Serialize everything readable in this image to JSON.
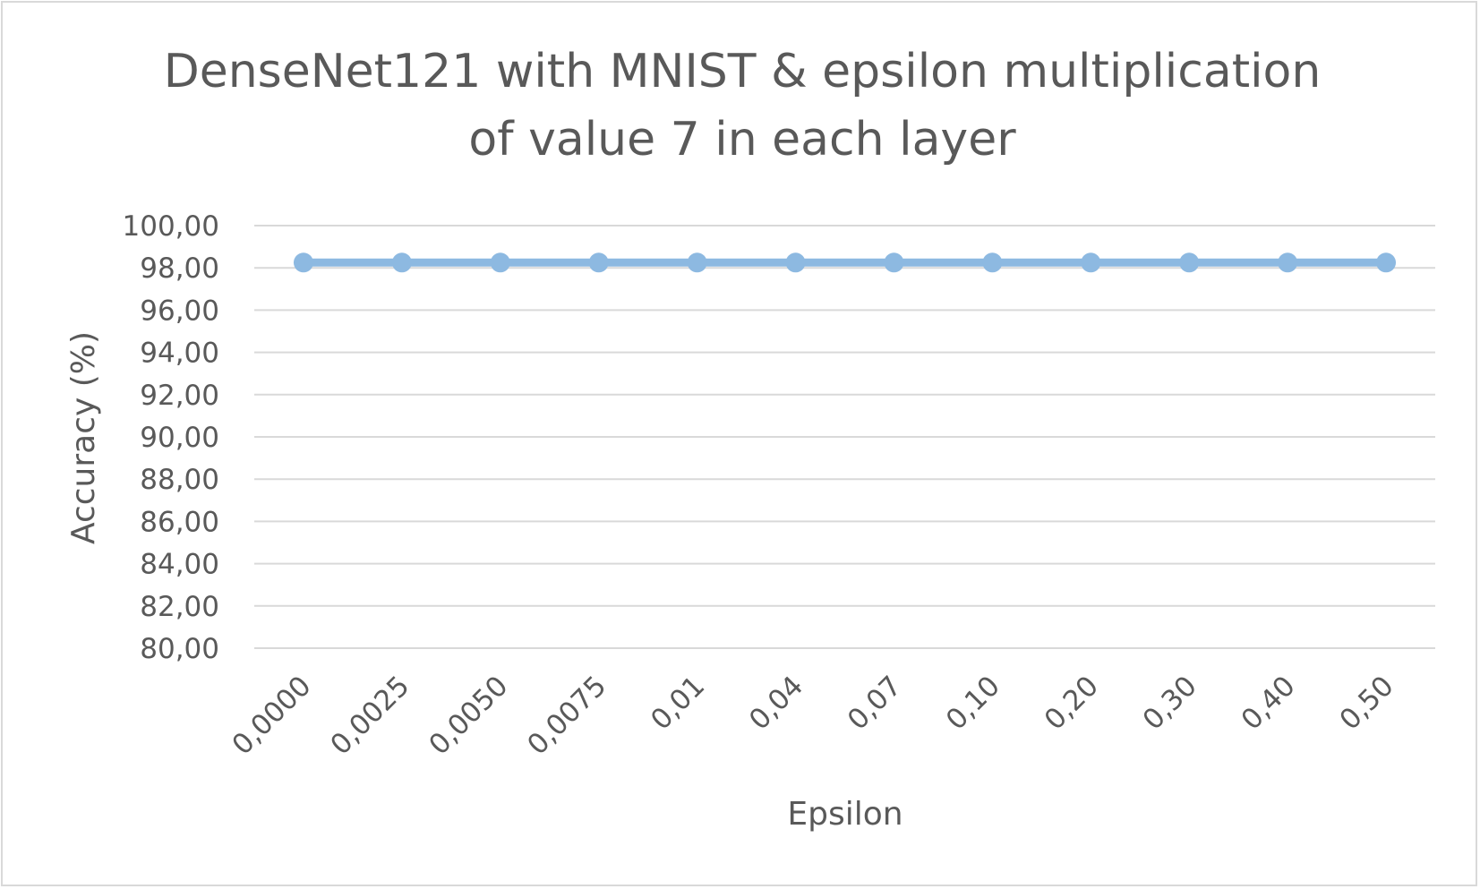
{
  "chart_data": {
    "type": "line",
    "title_lines": [
      "DenseNet121 with MNIST & epsilon multiplication",
      "of value 7 in each layer"
    ],
    "xlabel": "Epsilon",
    "ylabel": "Accuracy (%)",
    "categories": [
      "0,0000",
      "0,0025",
      "0,0050",
      "0,0075",
      "0,01",
      "0,04",
      "0,07",
      "0,10",
      "0,20",
      "0,30",
      "0,40",
      "0,50"
    ],
    "y_tick_labels": [
      "100,00",
      "98,00",
      "96,00",
      "94,00",
      "92,00",
      "90,00",
      "88,00",
      "86,00",
      "84,00",
      "82,00",
      "80,00"
    ],
    "ylim": [
      80,
      100
    ],
    "y_step": 2,
    "grid": true,
    "legend": "none",
    "series": [
      {
        "values": [
          98.25,
          98.25,
          98.25,
          98.25,
          98.25,
          98.25,
          98.25,
          98.25,
          98.25,
          98.25,
          98.25,
          98.25
        ],
        "color": "#8db9e1"
      }
    ]
  }
}
